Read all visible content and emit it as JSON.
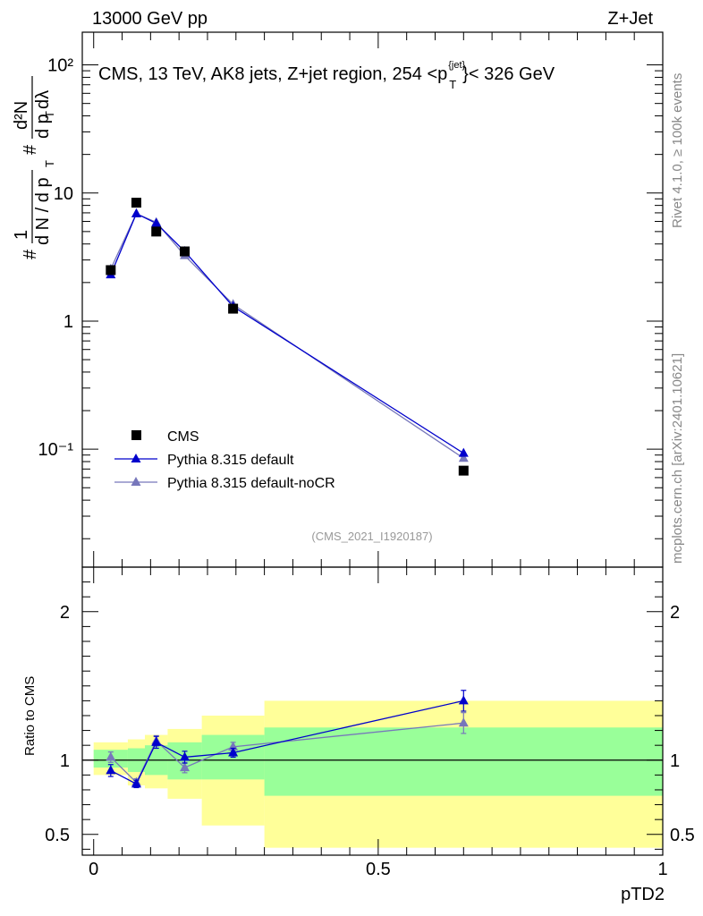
{
  "header": {
    "left": "13000 GeV pp",
    "right": "Z+Jet"
  },
  "side_labels": {
    "rivet": "Rivet 4.1.0, ≥ 100k events",
    "mcplots": "mcplots.cern.ch [arXiv:2401.10621]"
  },
  "chart_data": [
    {
      "type": "line",
      "title": "CMS, 13 TeV, AK8 jets, Z+jet region, 254 <p_T^{jet}< 326 GeV",
      "title_main": "CMS, 13 TeV, AK8 jets, Z+jet region, 254 <p",
      "title_sup": "{jet}",
      "title_sub": "T",
      "title_tail": "}< 326 GeV",
      "ylabel": "1/dN/dp_T d²N/dp_T dλ",
      "ylabel_parts": {
        "frac1_num": "1",
        "frac1_den": "d N / d p",
        "frac2_num": "d²N",
        "frac2_den": "d p",
        "frac2_den_tail": "dλ",
        "sub_T": "T",
        "hash": "#"
      },
      "yscale": "log",
      "ylim": [
        0.012,
        180
      ],
      "xlim": [
        -0.02,
        1.0
      ],
      "ytick_labels": [
        "10⁻¹",
        "1",
        "10",
        "10²"
      ],
      "ytick_values": [
        0.1,
        1,
        10,
        100
      ],
      "watermark": "(CMS_2021_I1920187)",
      "legend_position": "bottom-left",
      "series": [
        {
          "name": "CMS",
          "marker": "square",
          "color": "#000000",
          "x": [
            0.03,
            0.075,
            0.11,
            0.16,
            0.245,
            0.65
          ],
          "y": [
            2.5,
            8.4,
            5.0,
            3.5,
            1.25,
            0.068
          ]
        },
        {
          "name": "Pythia 8.315 default",
          "marker": "triangle",
          "color": "#0000cc",
          "x": [
            0.03,
            0.075,
            0.11,
            0.16,
            0.245,
            0.65
          ],
          "y": [
            2.3,
            6.9,
            5.8,
            3.5,
            1.3,
            0.093
          ]
        },
        {
          "name": "Pythia 8.315 default-noCR",
          "marker": "triangle",
          "color": "#7777bb",
          "x": [
            0.03,
            0.075,
            0.11,
            0.16,
            0.245,
            0.65
          ],
          "y": [
            2.55,
            6.9,
            5.9,
            3.25,
            1.35,
            0.085
          ]
        }
      ]
    },
    {
      "type": "line",
      "ylabel": "Ratio to CMS",
      "xlabel": "pTD2",
      "ylim": [
        0.36,
        2.3
      ],
      "xlim": [
        -0.02,
        1.0
      ],
      "ytick_values": [
        0.5,
        1,
        2
      ],
      "ytick_labels": [
        "0.5",
        "1",
        "2"
      ],
      "xtick_values": [
        0,
        0.5,
        1
      ],
      "xtick_labels": [
        "0",
        "0.5",
        "1"
      ],
      "bands": {
        "bin_edges": [
          0.0,
          0.06,
          0.09,
          0.13,
          0.19,
          0.3,
          1.0
        ],
        "yellow_low": [
          0.9,
          0.83,
          0.81,
          0.74,
          0.56,
          0.41
        ],
        "yellow_high": [
          1.12,
          1.14,
          1.17,
          1.21,
          1.3,
          1.4
        ],
        "green_low": [
          0.95,
          0.92,
          0.9,
          0.87,
          0.87,
          0.76
        ],
        "green_high": [
          1.07,
          1.08,
          1.1,
          1.12,
          1.17,
          1.22
        ]
      },
      "series": [
        {
          "name": "Pythia 8.315 default",
          "color": "#0000cc",
          "x": [
            0.03,
            0.075,
            0.11,
            0.16,
            0.245,
            0.65
          ],
          "y": [
            0.93,
            0.84,
            1.12,
            1.02,
            1.05,
            1.4
          ],
          "err": [
            0.04,
            0.025,
            0.04,
            0.04,
            0.03,
            0.07
          ]
        },
        {
          "name": "Pythia 8.315 default-noCR",
          "color": "#7777bb",
          "x": [
            0.03,
            0.075,
            0.11,
            0.16,
            0.245,
            0.65
          ],
          "y": [
            1.02,
            0.85,
            1.13,
            0.95,
            1.09,
            1.25
          ],
          "err": [
            0.035,
            0.025,
            0.035,
            0.035,
            0.03,
            0.07
          ]
        }
      ]
    }
  ]
}
